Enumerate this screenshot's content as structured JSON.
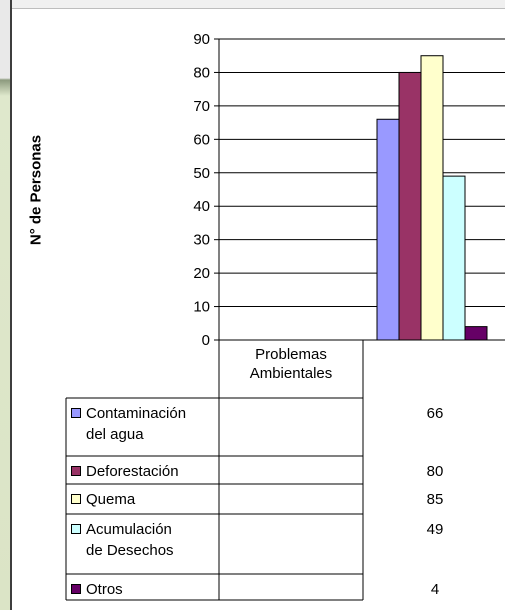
{
  "chart_data": {
    "type": "bar",
    "title": "",
    "xlabel": "",
    "ylabel": "N° de Personas",
    "ylim": [
      0,
      90
    ],
    "yticks": [
      0,
      10,
      20,
      30,
      40,
      50,
      60,
      70,
      80,
      90
    ],
    "grid": true,
    "categories": [
      "Problemas Ambientales"
    ],
    "series": [
      {
        "name": "Contaminación del agua",
        "name_lines": [
          "Contaminación",
          "del agua"
        ],
        "values": [
          66
        ],
        "color": "#9999ff"
      },
      {
        "name": "Deforestación",
        "name_lines": [
          "Deforestación"
        ],
        "values": [
          80
        ],
        "color": "#993366"
      },
      {
        "name": "Quema",
        "name_lines": [
          "Quema"
        ],
        "values": [
          85
        ],
        "color": "#ffffcc"
      },
      {
        "name": "Acumulación de Desechos",
        "name_lines": [
          "Acumulación",
          "de Desechos"
        ],
        "values": [
          49
        ],
        "color": "#ccffff"
      },
      {
        "name": "Otros",
        "name_lines": [
          "Otros"
        ],
        "values": [
          4
        ],
        "color": "#660066"
      }
    ],
    "legend": "data-table"
  }
}
